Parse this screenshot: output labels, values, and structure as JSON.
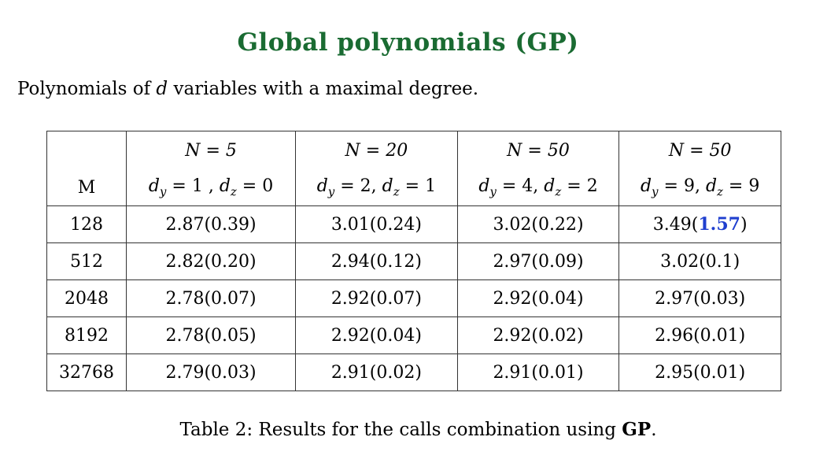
{
  "title": "Global polynomials (GP)",
  "intro": {
    "before": "Polynomials of ",
    "var": "d",
    "after": " variables with a maximal degree."
  },
  "table": {
    "corner_label": "M",
    "columns": [
      {
        "n_label": "N = 5",
        "dims_label": "d_y = 1 , d_z = 0"
      },
      {
        "n_label": "N = 20",
        "dims_label": "d_y = 2, d_z = 1"
      },
      {
        "n_label": "N = 50",
        "dims_label": "d_y = 4, d_z = 2"
      },
      {
        "n_label": "N = 50",
        "dims_label": "d_y = 9, d_z = 9"
      }
    ],
    "rows": [
      {
        "m": "128",
        "cells": [
          "2.87(0.39)",
          "3.01(0.24)",
          "3.02(0.22)",
          "3.49(1.57)"
        ]
      },
      {
        "m": "512",
        "cells": [
          "2.82(0.20)",
          "2.94(0.12)",
          "2.97(0.09)",
          "3.02(0.1)"
        ]
      },
      {
        "m": "2048",
        "cells": [
          "2.78(0.07)",
          "2.92(0.07)",
          "2.92(0.04)",
          "2.97(0.03)"
        ]
      },
      {
        "m": "8192",
        "cells": [
          "2.78(0.05)",
          "2.92(0.04)",
          "2.92(0.02)",
          "2.96(0.01)"
        ]
      },
      {
        "m": "32768",
        "cells": [
          "2.79(0.03)",
          "2.91(0.02)",
          "2.91(0.01)",
          "2.95(0.01)"
        ]
      }
    ],
    "highlight": {
      "row": 0,
      "col": 3,
      "value": "1.57",
      "color": "#1f3fcf"
    }
  },
  "caption": {
    "prefix": "Table 2: Results for the calls combination using ",
    "bold": "GP",
    "suffix": "."
  },
  "colors": {
    "title": "#1a6b32",
    "highlight": "#1f3fcf"
  }
}
